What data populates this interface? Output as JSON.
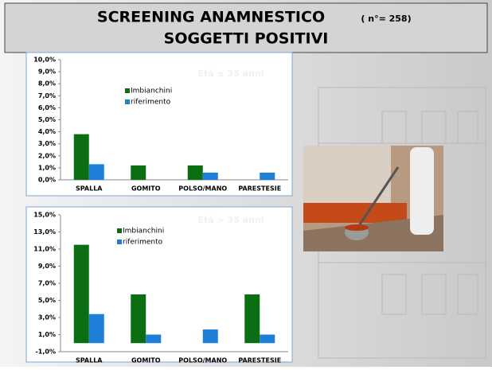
{
  "header": {
    "title": "SCREENING ANAMNESTICO",
    "note": "( n°= 258)",
    "subtitle": "SOGGETTI POSITIVI"
  },
  "chart_data": [
    {
      "type": "bar",
      "annotation": "Età ≤ 35 anni",
      "categories": [
        "SPALLA",
        "GOMITO",
        "POLSO/MANO",
        "PARESTESIE"
      ],
      "series": [
        {
          "name": "Imbianchini",
          "color": "#0b6e12",
          "values": [
            3.8,
            1.2,
            1.2,
            0
          ]
        },
        {
          "name": "riferimento",
          "color": "#1e7fd8",
          "values": [
            1.3,
            0,
            0.6,
            0.6
          ]
        }
      ],
      "ylim": [
        0,
        10
      ],
      "yticks": [
        {
          "value": 0,
          "label": "0,0%"
        },
        {
          "value": 1,
          "label": "1,0%"
        },
        {
          "value": 2,
          "label": "2,0%"
        },
        {
          "value": 3,
          "label": "3,0%"
        },
        {
          "value": 4,
          "label": "4,0%"
        },
        {
          "value": 5,
          "label": "5,0%"
        },
        {
          "value": 6,
          "label": "6,0%"
        },
        {
          "value": 7,
          "label": "7,0%"
        },
        {
          "value": 8,
          "label": "8,0%"
        },
        {
          "value": 9,
          "label": "9,0%"
        },
        {
          "value": 10,
          "label": "10,0%"
        }
      ]
    },
    {
      "type": "bar",
      "annotation": "Età > 35 anni",
      "categories": [
        "SPALLA",
        "GOMITO",
        "POLSO/MANO",
        "PARESTESIE"
      ],
      "series": [
        {
          "name": "Imbianchini",
          "color": "#0b6e12",
          "values": [
            11.5,
            5.7,
            0,
            5.7
          ]
        },
        {
          "name": "riferimento",
          "color": "#1e7fd8",
          "values": [
            3.4,
            1.0,
            1.6,
            1.0
          ]
        }
      ],
      "ylim": [
        -1,
        15
      ],
      "yticks": [
        {
          "value": -1,
          "label": "-1,0%"
        },
        {
          "value": 1,
          "label": "1,0%"
        },
        {
          "value": 3,
          "label": "3,0%"
        },
        {
          "value": 5,
          "label": "5,0%"
        },
        {
          "value": 7,
          "label": "7,0%"
        },
        {
          "value": 9,
          "label": "9,0%"
        },
        {
          "value": 11,
          "label": "11,0%"
        },
        {
          "value": 13,
          "label": "13,0%"
        },
        {
          "value": 15,
          "label": "15,0%"
        }
      ]
    }
  ]
}
